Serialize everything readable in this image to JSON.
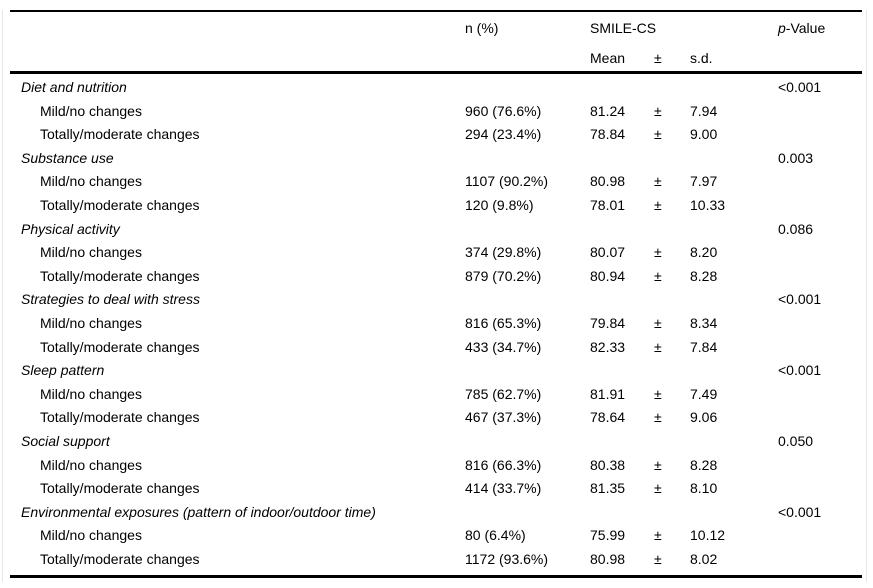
{
  "page": {
    "background_color": "#ffffff",
    "text_color": "#000000",
    "rule_color": "#000000"
  },
  "table": {
    "header": {
      "n": "n (%)",
      "group": "SMILE-CS",
      "mean": "Mean",
      "pm": "±",
      "sd": "s.d.",
      "p_italic": "p",
      "p_rest": "-Value"
    },
    "pm_sign": "±",
    "sections": [
      {
        "label": "Diet and nutrition",
        "p": "<0.001",
        "rows": [
          {
            "label": "Mild/no changes",
            "n": "960 (76.6%)",
            "mean": "81.24",
            "sd": "7.94"
          },
          {
            "label": "Totally/moderate changes",
            "n": "294 (23.4%)",
            "mean": "78.84",
            "sd": "9.00"
          }
        ]
      },
      {
        "label": "Substance use",
        "p": "0.003",
        "rows": [
          {
            "label": "Mild/no changes",
            "n": "1107 (90.2%)",
            "mean": "80.98",
            "sd": "7.97"
          },
          {
            "label": "Totally/moderate changes",
            "n": "120 (9.8%)",
            "mean": "78.01",
            "sd": "10.33"
          }
        ]
      },
      {
        "label": "Physical activity",
        "p": "0.086",
        "rows": [
          {
            "label": "Mild/no changes",
            "n": "374 (29.8%)",
            "mean": "80.07",
            "sd": "8.20"
          },
          {
            "label": "Totally/moderate changes",
            "n": "879 (70.2%)",
            "mean": "80.94",
            "sd": "8.28"
          }
        ]
      },
      {
        "label": "Strategies to deal with stress",
        "p": "<0.001",
        "rows": [
          {
            "label": "Mild/no changes",
            "n": "816 (65.3%)",
            "mean": "79.84",
            "sd": "8.34"
          },
          {
            "label": "Totally/moderate changes",
            "n": "433 (34.7%)",
            "mean": "82.33",
            "sd": "7.84"
          }
        ]
      },
      {
        "label": "Sleep pattern",
        "p": "<0.001",
        "rows": [
          {
            "label": "Mild/no changes",
            "n": "785 (62.7%)",
            "mean": "81.91",
            "sd": "7.49"
          },
          {
            "label": "Totally/moderate changes",
            "n": "467 (37.3%)",
            "mean": "78.64",
            "sd": "9.06"
          }
        ]
      },
      {
        "label": "Social support",
        "p": "0.050",
        "rows": [
          {
            "label": "Mild/no changes",
            "n": "816 (66.3%)",
            "mean": "80.38",
            "sd": "8.28"
          },
          {
            "label": "Totally/moderate changes",
            "n": "414 (33.7%)",
            "mean": "81.35",
            "sd": "8.10"
          }
        ]
      },
      {
        "label": "Environmental exposures (pattern of indoor/outdoor time)",
        "p": "<0.001",
        "rows": [
          {
            "label": "Mild/no changes",
            "n": "80 (6.4%)",
            "mean": "75.99",
            "sd": "10.12"
          },
          {
            "label": "Totally/moderate changes",
            "n": "1172 (93.6%)",
            "mean": "80.98",
            "sd": "8.02"
          }
        ]
      }
    ]
  }
}
